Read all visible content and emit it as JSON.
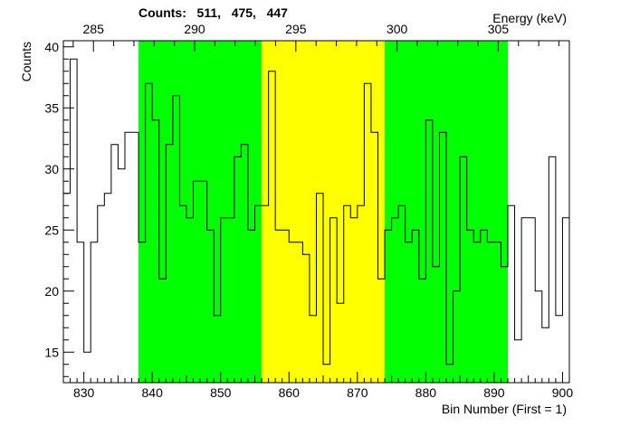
{
  "chart_data": {
    "type": "histogram-step",
    "title": "Counts:   511,   475,   447",
    "xlabel": "Bin Number (First = 1)",
    "ylabel": "Counts",
    "top_axis_label": "Energy (keV)",
    "xlim": [
      827,
      901
    ],
    "ylim": [
      12.5,
      40.5
    ],
    "x_ticks": [
      830,
      840,
      850,
      860,
      870,
      880,
      890,
      900
    ],
    "y_ticks": [
      15,
      20,
      25,
      30,
      35,
      40
    ],
    "top_ticks": [
      {
        "label": "285",
        "bin": 831.4
      },
      {
        "label": "290",
        "bin": 846.2
      },
      {
        "label": "295",
        "bin": 861.0
      },
      {
        "label": "300",
        "bin": 875.8
      },
      {
        "label": "305",
        "bin": 890.6
      }
    ],
    "regions": [
      {
        "from": 838,
        "to": 856,
        "color": "#00ff00"
      },
      {
        "from": 856,
        "to": 874,
        "color": "#ffff00"
      },
      {
        "from": 874,
        "to": 892,
        "color": "#00ff00"
      }
    ],
    "first_bin": 827,
    "bin_width": 1,
    "values": [
      28,
      39,
      24,
      15,
      24,
      27,
      28,
      32,
      30,
      33,
      33,
      24,
      37,
      34,
      21,
      32,
      36,
      27,
      26,
      29,
      29,
      25,
      18,
      26,
      26,
      31,
      32,
      25,
      27,
      27,
      38,
      25,
      25,
      24,
      24,
      23,
      18,
      28,
      14,
      26,
      19,
      27,
      26,
      27,
      37,
      33,
      21,
      25,
      26,
      27,
      24,
      25,
      21,
      34,
      22,
      33,
      14,
      20,
      31,
      25,
      24,
      25,
      24,
      24,
      22,
      27,
      16,
      26,
      26,
      20,
      17,
      31,
      18,
      26
    ],
    "line_color": "#000000",
    "grid": false
  }
}
